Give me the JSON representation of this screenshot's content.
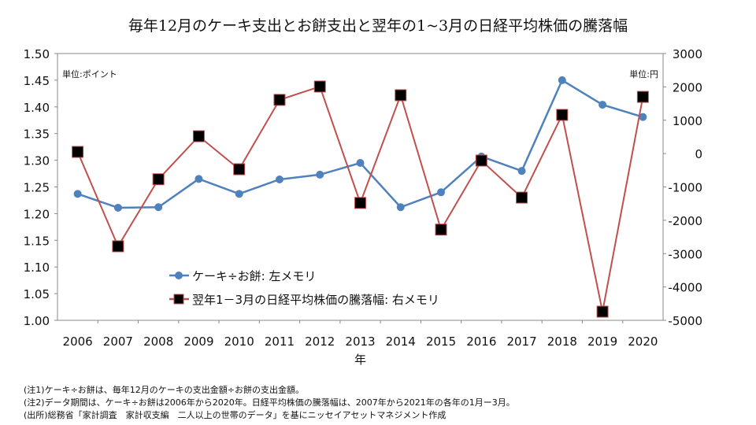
{
  "chart_data": {
    "type": "line",
    "title": "毎年12月のケーキ支出とお餅支出と翌年の1~3月の日経平均株価の騰落幅",
    "xlabel": "年",
    "categories": [
      "2006",
      "2007",
      "2008",
      "2009",
      "2010",
      "2011",
      "2012",
      "2013",
      "2014",
      "2015",
      "2016",
      "2017",
      "2018",
      "2019",
      "2020"
    ],
    "left_axis": {
      "unit_label": "単位:ポイント",
      "ylim": [
        1.0,
        1.5
      ],
      "ticks": [
        "1.00",
        "1.05",
        "1.10",
        "1.15",
        "1.20",
        "1.25",
        "1.30",
        "1.35",
        "1.40",
        "1.45",
        "1.50"
      ]
    },
    "right_axis": {
      "unit_label": "単位:円",
      "ylim": [
        -5000,
        3000
      ],
      "ticks": [
        "-5000",
        "-4000",
        "-3000",
        "-2000",
        "-1000",
        "0",
        "1000",
        "2000",
        "3000"
      ]
    },
    "series": [
      {
        "name": "ケーキ÷お餅: 左メモリ",
        "axis": "left",
        "color": "#4f81bd",
        "marker": "circle",
        "values": [
          1.237,
          1.211,
          1.212,
          1.265,
          1.237,
          1.264,
          1.273,
          1.295,
          1.212,
          1.24,
          1.307,
          1.28,
          1.45,
          1.404,
          1.381
        ]
      },
      {
        "name": "翌年1－3月の日経平均株価の騰落幅: 右メモリ",
        "axis": "right",
        "color": "#c0504d",
        "marker": "square",
        "values": [
          50,
          -2780,
          -770,
          520,
          -470,
          1610,
          2010,
          -1480,
          1750,
          -2280,
          -210,
          -1320,
          1160,
          -4740,
          1700
        ]
      }
    ],
    "legend": "bottom-left",
    "grid": false
  },
  "notes": [
    "(注1)ケーキ÷お餅は、毎年12月のケーキの支出金額÷お餅の支出金額。",
    "(注2)データ期間は、ケーキ÷お餅は2006年から2020年。日経平均株価の騰落幅は、2007年から2021年の各年の1月ー3月。",
    "(出所)総務省「家計調査　家計収支編　二人以上の世帯のデータ」を基にニッセイアセットマネジメント作成"
  ]
}
